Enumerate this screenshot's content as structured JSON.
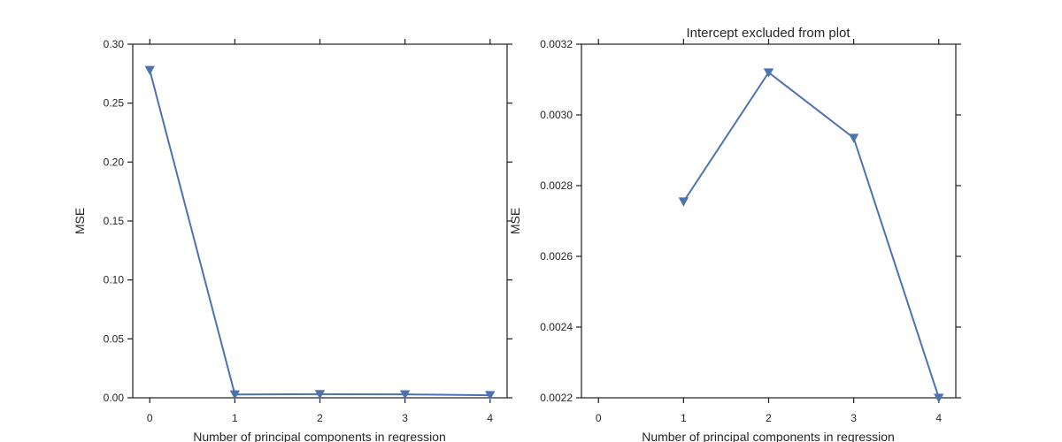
{
  "colors": {
    "series": "#4c72b0",
    "axes": "#262626",
    "background": "#ffffff"
  },
  "chart_data": [
    {
      "type": "line",
      "title": "",
      "xlabel": "Number of principal components in regression",
      "ylabel": "MSE",
      "xlim": [
        -0.2,
        4.2
      ],
      "ylim": [
        0.0,
        0.3
      ],
      "xticks": [
        0,
        1,
        2,
        3,
        4
      ],
      "xtick_labels": [
        "0",
        "1",
        "2",
        "3",
        "4"
      ],
      "yticks": [
        0.0,
        0.05,
        0.1,
        0.15,
        0.2,
        0.25,
        0.3
      ],
      "ytick_labels": [
        "0.00",
        "0.05",
        "0.10",
        "0.15",
        "0.20",
        "0.25",
        "0.30"
      ],
      "grid": false,
      "marker": "triangle-down",
      "series": [
        {
          "x": [
            0,
            1,
            2,
            3,
            4
          ],
          "y": [
            0.278,
            0.0028,
            0.0031,
            0.0029,
            0.0022
          ]
        }
      ]
    },
    {
      "type": "line",
      "title": "Intercept excluded from plot",
      "xlabel": "Number of principal components in regression",
      "ylabel": "MSE",
      "xlim": [
        -0.2,
        4.2
      ],
      "ylim": [
        0.0022,
        0.0032
      ],
      "xticks": [
        0,
        1,
        2,
        3,
        4
      ],
      "xtick_labels": [
        "0",
        "1",
        "2",
        "3",
        "4"
      ],
      "yticks": [
        0.0022,
        0.0024,
        0.0026,
        0.0028,
        0.003,
        0.0032
      ],
      "ytick_labels": [
        "0.0022",
        "0.0024",
        "0.0026",
        "0.0028",
        "0.0030",
        "0.0032"
      ],
      "grid": false,
      "marker": "triangle-down",
      "series": [
        {
          "x": [
            1,
            2,
            3,
            4
          ],
          "y": [
            0.002755,
            0.00312,
            0.002935,
            0.0022
          ]
        }
      ]
    }
  ]
}
